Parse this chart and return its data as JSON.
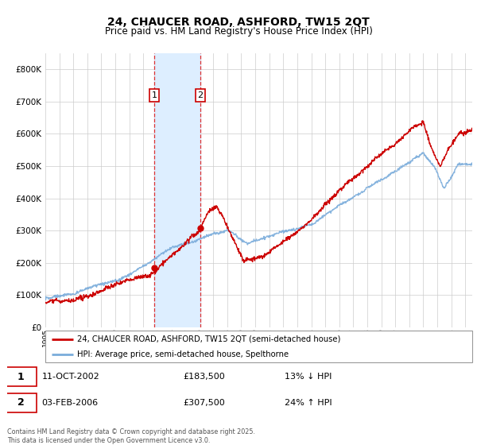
{
  "title": "24, CHAUCER ROAD, ASHFORD, TW15 2QT",
  "subtitle": "Price paid vs. HM Land Registry's House Price Index (HPI)",
  "legend_line1": "24, CHAUCER ROAD, ASHFORD, TW15 2QT (semi-detached house)",
  "legend_line2": "HPI: Average price, semi-detached house, Spelthorne",
  "transaction1_label": "1",
  "transaction1_date": "11-OCT-2002",
  "transaction1_price": "£183,500",
  "transaction1_hpi": "13% ↓ HPI",
  "transaction2_label": "2",
  "transaction2_date": "03-FEB-2006",
  "transaction2_price": "£307,500",
  "transaction2_hpi": "24% ↑ HPI",
  "footer": "Contains HM Land Registry data © Crown copyright and database right 2025.\nThis data is licensed under the Open Government Licence v3.0.",
  "house_color": "#cc0000",
  "hpi_color": "#7aacdb",
  "shade_color": "#ddeeff",
  "vline_color": "#dd3333",
  "ylim": [
    0,
    850000
  ],
  "xlim_start": 1995.0,
  "xlim_end": 2025.5,
  "t1_year": 2002.79,
  "t2_year": 2006.08,
  "t1_val": 183500,
  "t2_val": 307500
}
